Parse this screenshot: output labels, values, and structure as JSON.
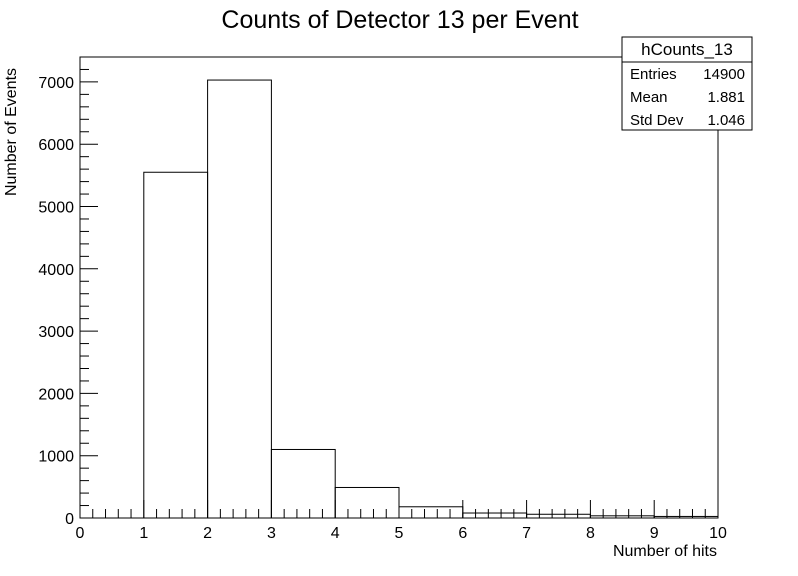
{
  "chart_data": {
    "type": "bar",
    "title": "Counts of Detector 13 per Event",
    "xlabel": "Number of hits",
    "ylabel": "Number of Events",
    "xlim": [
      0,
      10
    ],
    "ylim": [
      0,
      7400
    ],
    "x_ticks": [
      "0",
      "1",
      "2",
      "3",
      "4",
      "5",
      "6",
      "7",
      "8",
      "9",
      "10"
    ],
    "y_ticks": [
      "0",
      "1000",
      "2000",
      "3000",
      "4000",
      "5000",
      "6000",
      "7000"
    ],
    "bin_edges": [
      0,
      1,
      2,
      3,
      4,
      5,
      6,
      7,
      8,
      9,
      10
    ],
    "values": [
      0,
      5550,
      7030,
      1100,
      490,
      180,
      80,
      60,
      35,
      25
    ],
    "grid": false,
    "legend_position": "top-right",
    "stats_box": {
      "name": "hCounts_13",
      "rows": [
        {
          "label": "Entries",
          "value": "14900"
        },
        {
          "label": "Mean",
          "value": "1.881"
        },
        {
          "label": "Std Dev",
          "value": "1.046"
        }
      ]
    },
    "colors": {
      "frame": "#000000",
      "hist_line": "#000000",
      "background": "#ffffff"
    }
  }
}
